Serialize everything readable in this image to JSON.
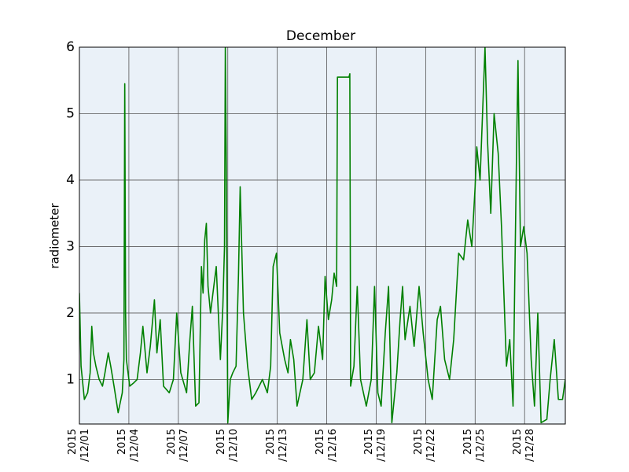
{
  "chart_data": {
    "type": "line",
    "title": "December",
    "ylabel": "radiometer",
    "x": [
      1.0,
      1.1,
      1.3,
      1.5,
      1.65,
      1.75,
      1.85,
      2.0,
      2.2,
      2.4,
      2.55,
      2.75,
      2.9,
      3.1,
      3.35,
      3.6,
      3.7,
      3.75,
      3.8,
      3.85,
      4.05,
      4.3,
      4.5,
      4.7,
      4.85,
      5.1,
      5.3,
      5.55,
      5.7,
      5.9,
      6.1,
      6.45,
      6.7,
      6.9,
      7.15,
      7.5,
      7.7,
      7.85,
      8.05,
      8.25,
      8.4,
      8.5,
      8.6,
      8.7,
      8.8,
      8.95,
      9.1,
      9.3,
      9.55,
      9.7,
      9.8,
      9.85,
      9.9,
      10.0,
      10.15,
      10.3,
      10.5,
      10.65,
      10.75,
      10.95,
      11.2,
      11.45,
      11.7,
      11.9,
      12.1,
      12.4,
      12.6,
      12.75,
      12.95,
      13.15,
      13.45,
      13.65,
      13.8,
      14.0,
      14.2,
      14.55,
      14.8,
      15.0,
      15.25,
      15.5,
      15.75,
      15.9,
      16.1,
      16.3,
      16.45,
      16.6,
      16.65,
      17.35,
      17.4,
      17.45,
      17.65,
      17.85,
      18.05,
      18.4,
      18.7,
      18.9,
      19.1,
      19.3,
      19.55,
      19.75,
      19.95,
      20.25,
      20.45,
      20.6,
      20.75,
      21.05,
      21.3,
      21.6,
      21.85,
      22.15,
      22.4,
      22.7,
      22.9,
      23.15,
      23.45,
      23.7,
      24.0,
      24.3,
      24.55,
      24.8,
      25.0,
      25.1,
      25.3,
      25.45,
      25.6,
      25.75,
      25.95,
      26.15,
      26.4,
      26.6,
      26.7,
      26.9,
      27.1,
      27.3,
      27.5,
      27.6,
      27.75,
      27.95,
      28.15,
      28.4,
      28.6,
      28.8,
      29.0,
      29.35,
      29.55,
      29.8,
      30.05,
      30.3,
      30.47
    ],
    "series": [
      {
        "name": "radiometer",
        "color": "#008000",
        "values": [
          2.3,
          1.2,
          0.7,
          0.8,
          1.1,
          1.8,
          1.4,
          1.2,
          1.0,
          0.9,
          1.1,
          1.4,
          1.2,
          0.9,
          0.5,
          0.8,
          1.3,
          5.45,
          2.0,
          1.3,
          0.9,
          0.95,
          1.0,
          1.4,
          1.8,
          1.1,
          1.5,
          2.2,
          1.4,
          1.9,
          0.9,
          0.8,
          1.0,
          2.0,
          1.1,
          0.8,
          1.6,
          2.1,
          0.6,
          0.65,
          2.7,
          2.3,
          3.1,
          3.35,
          2.4,
          2.0,
          2.3,
          2.7,
          1.3,
          2.1,
          3.0,
          6.0,
          4.5,
          0.35,
          1.0,
          1.1,
          1.2,
          2.6,
          3.9,
          2.0,
          1.2,
          0.7,
          0.8,
          0.9,
          1.0,
          0.8,
          1.2,
          2.7,
          2.9,
          1.7,
          1.3,
          1.1,
          1.6,
          1.3,
          0.6,
          1.0,
          1.9,
          1.0,
          1.1,
          1.8,
          1.3,
          2.55,
          1.9,
          2.2,
          2.6,
          2.4,
          5.55,
          5.55,
          5.6,
          0.9,
          1.2,
          2.4,
          1.0,
          0.6,
          1.0,
          2.4,
          0.8,
          0.6,
          1.7,
          2.4,
          0.35,
          1.1,
          1.9,
          2.4,
          1.6,
          2.1,
          1.5,
          2.4,
          1.7,
          1.0,
          0.7,
          1.9,
          2.1,
          1.3,
          1.0,
          1.6,
          2.9,
          2.8,
          3.4,
          3.0,
          3.9,
          4.5,
          4.0,
          5.0,
          6.0,
          4.6,
          3.5,
          5.0,
          4.4,
          3.3,
          2.6,
          1.2,
          1.6,
          0.6,
          4.2,
          5.8,
          3.0,
          3.3,
          2.9,
          1.3,
          0.6,
          2.0,
          0.35,
          0.4,
          1.0,
          1.6,
          0.7,
          0.7,
          1.0
        ]
      }
    ],
    "xlim": [
      1,
      30.47
    ],
    "xticks": [
      {
        "value": 1,
        "label": "2015\n/12/01"
      },
      {
        "value": 4,
        "label": "2015\n/12/04"
      },
      {
        "value": 7,
        "label": "2015\n/12/07"
      },
      {
        "value": 10,
        "label": "2015\n/12/10"
      },
      {
        "value": 13,
        "label": "2015\n/12/13"
      },
      {
        "value": 16,
        "label": "2015\n/12/16"
      },
      {
        "value": 19,
        "label": "2015\n/12/19"
      },
      {
        "value": 22,
        "label": "2015\n/12/22"
      },
      {
        "value": 25,
        "label": "2015\n/12/25"
      },
      {
        "value": 28,
        "label": "2015\n/12/28"
      }
    ],
    "ylim": [
      0.33,
      6
    ],
    "yticks": [
      1,
      2,
      3,
      4,
      5,
      6
    ],
    "grid": true,
    "background": "#eaf1f8"
  }
}
